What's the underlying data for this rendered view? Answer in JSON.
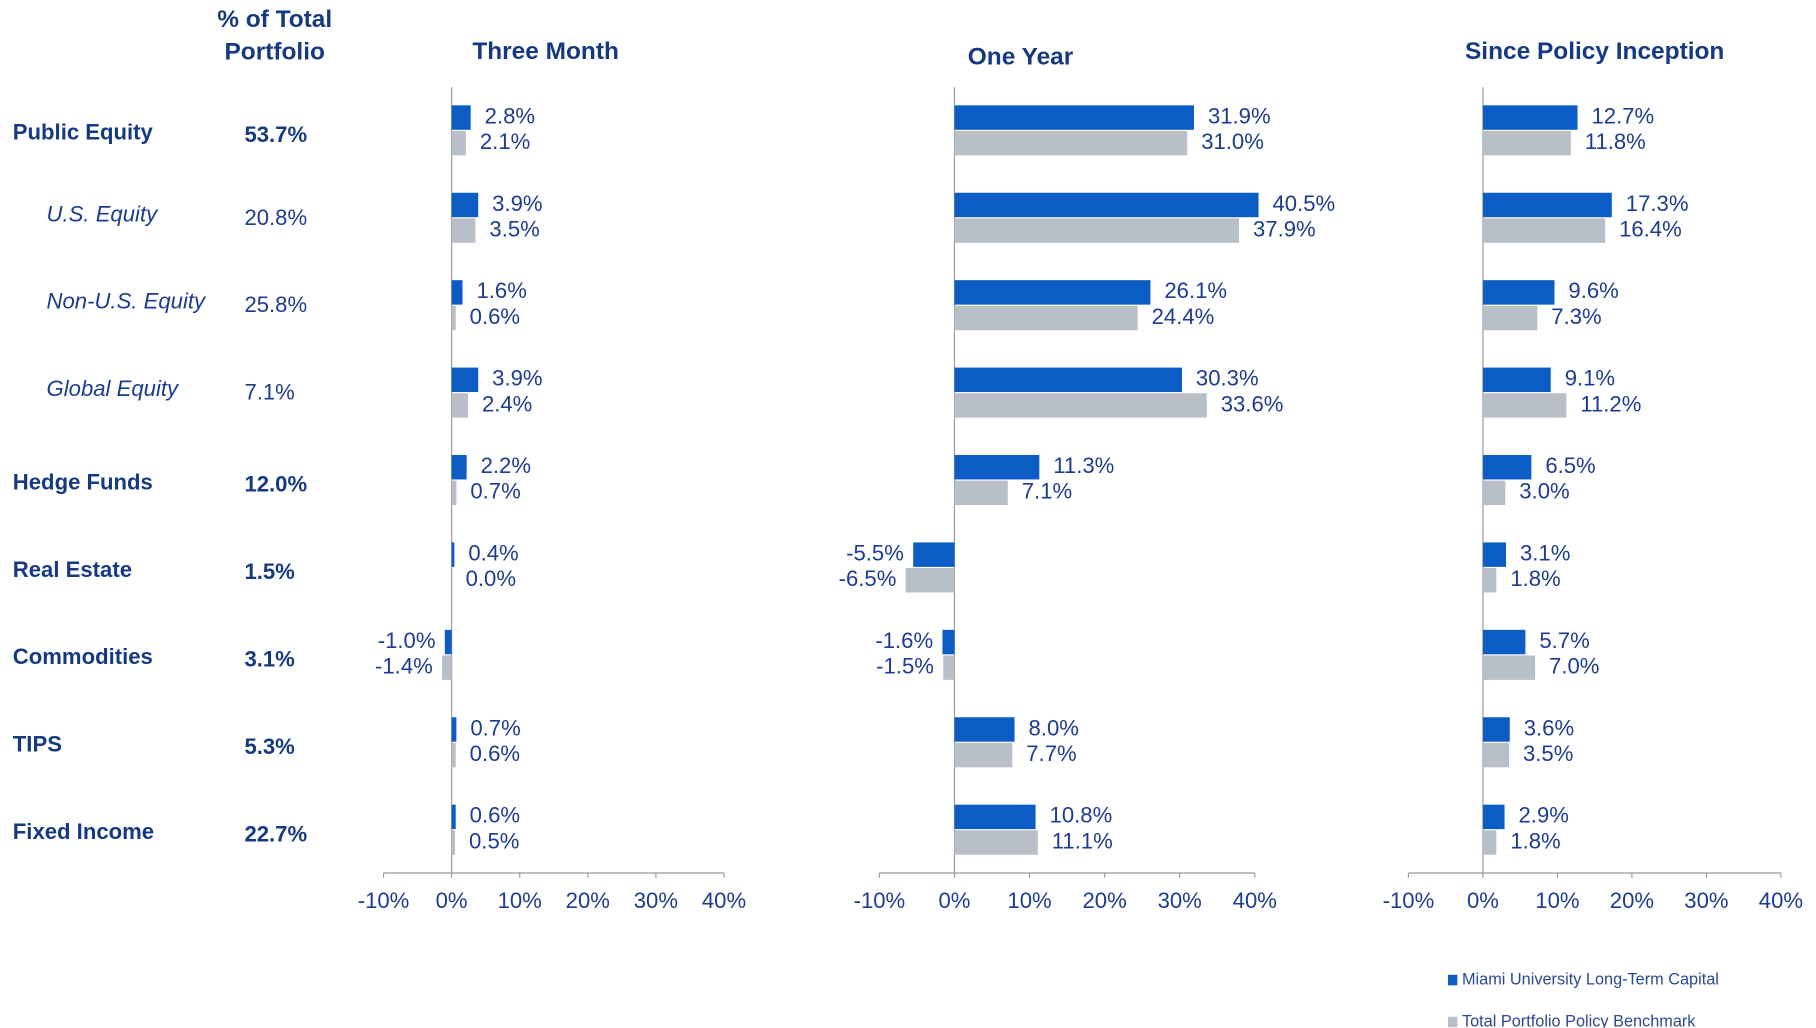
{
  "rows": {
    "header": "% of Total Portfolio",
    "categories": [
      "Public Equity",
      "U.S. Equity",
      "Non-U.S. Equity",
      "Global Equity",
      "Hedge Funds",
      "Real Estate",
      "Commodities",
      "TIPS",
      "Fixed Income"
    ],
    "shares": [
      "53.7%",
      "20.8%",
      "25.8%",
      "7.1%",
      "12.0%",
      "1.5%",
      "3.1%",
      "5.3%",
      "22.7%"
    ],
    "sub_rows": [
      1,
      2,
      3
    ]
  },
  "chart_data": [
    {
      "type": "hbar",
      "title": "Three Month",
      "xlim": [
        -10,
        40
      ],
      "xticks": [
        {
          "value": -10,
          "label": "-10%"
        },
        {
          "value": 0,
          "label": "0%"
        },
        {
          "value": 10,
          "label": "10%"
        },
        {
          "value": 20,
          "label": "20%"
        },
        {
          "value": 30,
          "label": "30%"
        },
        {
          "value": 40,
          "label": "40%"
        }
      ],
      "series": [
        {
          "name": "Miami University Long-Term Capital",
          "color": "#0b5cc5",
          "values": [
            2.8,
            3.9,
            1.6,
            3.9,
            2.2,
            0.4,
            -1.0,
            0.7,
            0.6
          ],
          "value_labels": [
            "2.8%",
            "3.9%",
            "1.6%",
            "3.9%",
            "2.2%",
            "0.4%",
            "-1.0%",
            "0.7%",
            "0.6%"
          ]
        },
        {
          "name": "Total Portfolio Policy Benchmark",
          "color": "#b9bfc7",
          "values": [
            2.1,
            3.5,
            0.6,
            2.4,
            0.7,
            0.0,
            -1.4,
            0.6,
            0.5
          ],
          "value_labels": [
            "2.1%",
            "3.5%",
            "0.6%",
            "2.4%",
            "0.7%",
            "0.0%",
            "-1.4%",
            "0.6%",
            "0.5%"
          ]
        }
      ]
    },
    {
      "type": "hbar",
      "title": "One Year",
      "xlim": [
        -10,
        40
      ],
      "xticks": [
        {
          "value": -10,
          "label": "-10%"
        },
        {
          "value": 0,
          "label": "0%"
        },
        {
          "value": 10,
          "label": "10%"
        },
        {
          "value": 20,
          "label": "20%"
        },
        {
          "value": 30,
          "label": "30%"
        },
        {
          "value": 40,
          "label": "40%"
        }
      ],
      "series": [
        {
          "color": "#0b5cc5",
          "values": [
            31.9,
            40.5,
            26.1,
            30.3,
            11.3,
            -5.5,
            -1.6,
            8.0,
            10.8
          ],
          "value_labels": [
            "31.9%",
            "40.5%",
            "26.1%",
            "30.3%",
            "11.3%",
            "-5.5%",
            "-1.6%",
            "8.0%",
            "10.8%"
          ]
        },
        {
          "color": "#b9bfc7",
          "values": [
            31.0,
            37.9,
            24.4,
            33.6,
            7.1,
            -6.5,
            -1.5,
            7.7,
            11.1
          ],
          "value_labels": [
            "31.0%",
            "37.9%",
            "24.4%",
            "33.6%",
            "7.1%",
            "-6.5%",
            "-1.5%",
            "7.7%",
            "11.1%"
          ]
        }
      ]
    },
    {
      "type": "hbar",
      "title": "Since Policy Inception",
      "xlim": [
        -10,
        40
      ],
      "xticks": [
        {
          "value": -10,
          "label": "-10%"
        },
        {
          "value": 0,
          "label": "0%"
        },
        {
          "value": 10,
          "label": "10%"
        },
        {
          "value": 20,
          "label": "20%"
        },
        {
          "value": 30,
          "label": "30%"
        },
        {
          "value": 40,
          "label": "40%"
        }
      ],
      "series": [
        {
          "color": "#0b5cc5",
          "values": [
            12.7,
            17.3,
            9.6,
            9.1,
            6.5,
            3.1,
            5.7,
            3.6,
            2.9
          ],
          "value_labels": [
            "12.7%",
            "17.3%",
            "9.6%",
            "9.1%",
            "6.5%",
            "3.1%",
            "5.7%",
            "3.6%",
            "2.9%"
          ]
        },
        {
          "color": "#b9bfc7",
          "values": [
            11.8,
            16.4,
            7.3,
            11.2,
            3.0,
            1.8,
            7.0,
            3.5,
            1.8
          ],
          "value_labels": [
            "11.8%",
            "16.4%",
            "7.3%",
            "11.2%",
            "3.0%",
            "1.8%",
            "7.0%",
            "3.5%",
            "1.8%"
          ]
        }
      ]
    }
  ]
}
